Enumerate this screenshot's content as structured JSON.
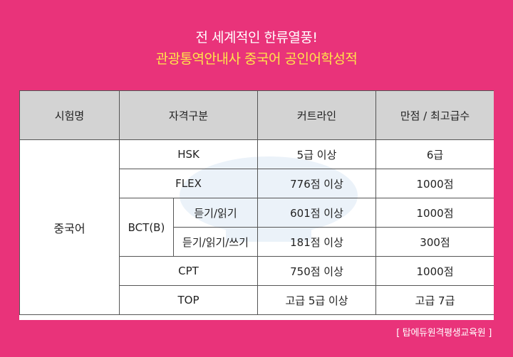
{
  "header": {
    "line1": "전 세계적인 한류열풍!",
    "line2": "관광통역안내사 중국어 공인어학성적",
    "line1_color": "#ffffff",
    "line2_color": "#ffe54a"
  },
  "background_color": "#e9337a",
  "table": {
    "headers": [
      "시험명",
      "자격구분",
      "커트라인",
      "만점 / 최고급수"
    ],
    "exam": "중국어",
    "rows": [
      {
        "type": "HSK",
        "cutline": "5급 이상",
        "max": "6급"
      },
      {
        "type": "FLEX",
        "cutline": "776점 이상",
        "max": "1000점"
      },
      {
        "type": "BCT(B)",
        "sub": "듣기/읽기",
        "cutline": "601점 이상",
        "max": "1000점"
      },
      {
        "type": "BCT(B)",
        "sub": "듣기/읽기/쓰기",
        "cutline": "181점 이상",
        "max": "300점"
      },
      {
        "type": "CPT",
        "cutline": "750점 이상",
        "max": "1000점"
      },
      {
        "type": "TOP",
        "cutline": "고급 5급 이상",
        "max": "고급 7급"
      }
    ]
  },
  "caption": "[ 탑에듀원격평생교육원 ]"
}
